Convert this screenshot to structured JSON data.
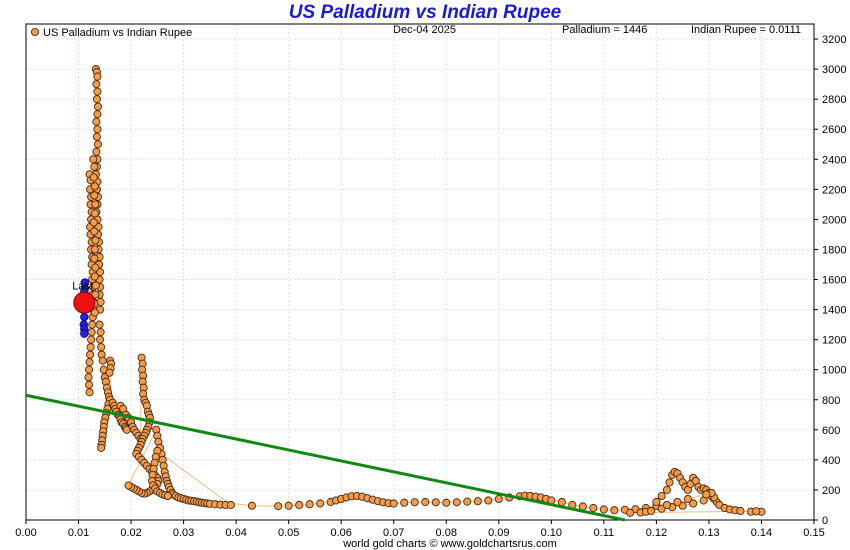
{
  "chart_data": {
    "type": "scatter",
    "title": "US Palladium vs Indian Rupee",
    "legend": {
      "label": "US Palladium vs Indian Rupee",
      "position": "top-left"
    },
    "date_label": "Dec-04  2025",
    "palladium_label": "Palladium = 1446",
    "rupee_label": "Indian Rupee = 0.0111",
    "last_label": "Last",
    "footer": "world gold charts © www.goldchartsrus.com",
    "xlim": [
      0,
      0.15
    ],
    "ylim": [
      0,
      3300
    ],
    "x_ticks": [
      "0.00",
      "0.01",
      "0.02",
      "0.03",
      "0.04",
      "0.05",
      "0.06",
      "0.07",
      "0.08",
      "0.09",
      "0.10",
      "0.11",
      "0.12",
      "0.13",
      "0.14",
      "0.15"
    ],
    "y_ticks": [
      "0",
      "200",
      "400",
      "600",
      "800",
      "1000",
      "1200",
      "1400",
      "1600",
      "1800",
      "2000",
      "2200",
      "2400",
      "2600",
      "2800",
      "3000",
      "3200"
    ],
    "grid": true,
    "colors": {
      "points": "#f39c4a",
      "recent": "#2222dd",
      "last": "#ee1111",
      "trend": "#118811",
      "title": "#1a1adc"
    },
    "trend_line": [
      [
        0,
        830
      ],
      [
        0.114,
        0
      ]
    ],
    "last_point": [
      0.0111,
      1446
    ],
    "recent_points": [
      [
        0.0112,
        1540
      ],
      [
        0.0112,
        1580
      ],
      [
        0.0111,
        1520
      ],
      [
        0.011,
        1480
      ],
      [
        0.0111,
        1350
      ],
      [
        0.011,
        1300
      ],
      [
        0.0111,
        1270
      ],
      [
        0.0111,
        1240
      ],
      [
        0.0112,
        1400
      ],
      [
        0.0111,
        1460
      ]
    ],
    "series_points": [
      [
        0.0133,
        3000
      ],
      [
        0.0135,
        2980
      ],
      [
        0.0136,
        2950
      ],
      [
        0.0134,
        2900
      ],
      [
        0.0136,
        2850
      ],
      [
        0.0135,
        2800
      ],
      [
        0.0137,
        2750
      ],
      [
        0.0136,
        2700
      ],
      [
        0.0134,
        2650
      ],
      [
        0.0136,
        2600
      ],
      [
        0.0135,
        2550
      ],
      [
        0.0137,
        2500
      ],
      [
        0.0134,
        2450
      ],
      [
        0.0136,
        2400
      ],
      [
        0.0135,
        2350
      ],
      [
        0.0133,
        2300
      ],
      [
        0.0136,
        2250
      ],
      [
        0.0135,
        2200
      ],
      [
        0.0137,
        2150
      ],
      [
        0.0136,
        2100
      ],
      [
        0.0134,
        2050
      ],
      [
        0.0136,
        2000
      ],
      [
        0.0138,
        1950
      ],
      [
        0.0137,
        1900
      ],
      [
        0.0139,
        1850
      ],
      [
        0.0138,
        1800
      ],
      [
        0.014,
        1750
      ],
      [
        0.0139,
        1700
      ],
      [
        0.0141,
        1650
      ],
      [
        0.014,
        1600
      ],
      [
        0.0141,
        1550
      ],
      [
        0.014,
        1500
      ],
      [
        0.0142,
        1450
      ],
      [
        0.0141,
        1400
      ],
      [
        0.0121,
        2300
      ],
      [
        0.0123,
        2260
      ],
      [
        0.0122,
        2200
      ],
      [
        0.0124,
        2150
      ],
      [
        0.0123,
        2100
      ],
      [
        0.0125,
        2050
      ],
      [
        0.0124,
        2000
      ],
      [
        0.0122,
        1950
      ],
      [
        0.0123,
        1900
      ],
      [
        0.0125,
        1850
      ],
      [
        0.0124,
        1800
      ],
      [
        0.0126,
        1750
      ],
      [
        0.0125,
        1700
      ],
      [
        0.0127,
        1650
      ],
      [
        0.0126,
        1600
      ],
      [
        0.0128,
        1550
      ],
      [
        0.0127,
        1500
      ],
      [
        0.0129,
        1450
      ],
      [
        0.0128,
        1400
      ],
      [
        0.0127,
        1350
      ],
      [
        0.0126,
        1300
      ],
      [
        0.0125,
        1250
      ],
      [
        0.0124,
        1200
      ],
      [
        0.0123,
        1150
      ],
      [
        0.0122,
        1100
      ],
      [
        0.0121,
        1050
      ],
      [
        0.012,
        1000
      ],
      [
        0.0119,
        950
      ],
      [
        0.012,
        900
      ],
      [
        0.0121,
        850
      ],
      [
        0.0128,
        2400
      ],
      [
        0.013,
        2350
      ],
      [
        0.0129,
        2280
      ],
      [
        0.0131,
        2220
      ],
      [
        0.013,
        2160
      ],
      [
        0.0132,
        2100
      ],
      [
        0.0131,
        2040
      ],
      [
        0.0129,
        1980
      ],
      [
        0.013,
        1920
      ],
      [
        0.0132,
        1860
      ],
      [
        0.0131,
        1800
      ],
      [
        0.013,
        1740
      ],
      [
        0.0132,
        1680
      ],
      [
        0.0131,
        1620
      ],
      [
        0.0133,
        1560
      ],
      [
        0.0132,
        1500
      ],
      [
        0.013,
        1440
      ],
      [
        0.0131,
        1380
      ],
      [
        0.014,
        1300
      ],
      [
        0.0142,
        1250
      ],
      [
        0.0141,
        1200
      ],
      [
        0.0143,
        1150
      ],
      [
        0.0144,
        1100
      ],
      [
        0.0146,
        1060
      ],
      [
        0.0148,
        1000
      ],
      [
        0.015,
        950
      ],
      [
        0.0152,
        920
      ],
      [
        0.0154,
        880
      ],
      [
        0.0156,
        850
      ],
      [
        0.0158,
        820
      ],
      [
        0.016,
        800
      ],
      [
        0.0157,
        770
      ],
      [
        0.0155,
        740
      ],
      [
        0.0153,
        710
      ],
      [
        0.0151,
        680
      ],
      [
        0.0149,
        650
      ],
      [
        0.0148,
        620
      ],
      [
        0.0147,
        590
      ],
      [
        0.0146,
        560
      ],
      [
        0.0145,
        530
      ],
      [
        0.0144,
        500
      ],
      [
        0.0143,
        480
      ],
      [
        0.016,
        1060
      ],
      [
        0.0162,
        1040
      ],
      [
        0.0161,
        1010
      ],
      [
        0.0159,
        980
      ],
      [
        0.0165,
        780
      ],
      [
        0.0168,
        760
      ],
      [
        0.017,
        740
      ],
      [
        0.0172,
        720
      ],
      [
        0.0175,
        700
      ],
      [
        0.0178,
        690
      ],
      [
        0.018,
        670
      ],
      [
        0.0182,
        650
      ],
      [
        0.0185,
        640
      ],
      [
        0.0188,
        620
      ],
      [
        0.019,
        610
      ],
      [
        0.0192,
        600
      ],
      [
        0.018,
        760
      ],
      [
        0.0185,
        740
      ],
      [
        0.019,
        700
      ],
      [
        0.0195,
        680
      ],
      [
        0.02,
        650
      ],
      [
        0.0203,
        620
      ],
      [
        0.0206,
        600
      ],
      [
        0.021,
        580
      ],
      [
        0.0214,
        560
      ],
      [
        0.0218,
        540
      ],
      [
        0.022,
        1080
      ],
      [
        0.0222,
        1040
      ],
      [
        0.0221,
        1000
      ],
      [
        0.0223,
        960
      ],
      [
        0.0222,
        920
      ],
      [
        0.0224,
        880
      ],
      [
        0.0223,
        840
      ],
      [
        0.0225,
        800
      ],
      [
        0.0228,
        780
      ],
      [
        0.023,
        760
      ],
      [
        0.0232,
        720
      ],
      [
        0.0234,
        700
      ],
      [
        0.0236,
        680
      ],
      [
        0.0235,
        650
      ],
      [
        0.0233,
        620
      ],
      [
        0.023,
        600
      ],
      [
        0.0228,
        580
      ],
      [
        0.0225,
        560
      ],
      [
        0.0222,
        540
      ],
      [
        0.022,
        520
      ],
      [
        0.0218,
        500
      ],
      [
        0.0215,
        480
      ],
      [
        0.0212,
        460
      ],
      [
        0.021,
        440
      ],
      [
        0.0215,
        420
      ],
      [
        0.022,
        400
      ],
      [
        0.0225,
        380
      ],
      [
        0.023,
        360
      ],
      [
        0.0235,
        340
      ],
      [
        0.024,
        320
      ],
      [
        0.0245,
        300
      ],
      [
        0.025,
        280
      ],
      [
        0.0252,
        260
      ],
      [
        0.025,
        240
      ],
      [
        0.0245,
        220
      ],
      [
        0.024,
        200
      ],
      [
        0.0235,
        190
      ],
      [
        0.023,
        180
      ],
      [
        0.0225,
        175
      ],
      [
        0.022,
        180
      ],
      [
        0.0215,
        190
      ],
      [
        0.021,
        200
      ],
      [
        0.0205,
        210
      ],
      [
        0.02,
        220
      ],
      [
        0.0195,
        230
      ],
      [
        0.0248,
        600
      ],
      [
        0.025,
        560
      ],
      [
        0.0252,
        520
      ],
      [
        0.0255,
        480
      ],
      [
        0.0258,
        440
      ],
      [
        0.026,
        400
      ],
      [
        0.0262,
        360
      ],
      [
        0.0264,
        320
      ],
      [
        0.0266,
        290
      ],
      [
        0.0268,
        260
      ],
      [
        0.027,
        240
      ],
      [
        0.0272,
        220
      ],
      [
        0.0275,
        200
      ],
      [
        0.0278,
        180
      ],
      [
        0.028,
        170
      ],
      [
        0.0285,
        160
      ],
      [
        0.029,
        150
      ],
      [
        0.0295,
        145
      ],
      [
        0.03,
        140
      ],
      [
        0.0305,
        135
      ],
      [
        0.031,
        130
      ],
      [
        0.0315,
        128
      ],
      [
        0.032,
        125
      ],
      [
        0.0325,
        122
      ],
      [
        0.033,
        118
      ],
      [
        0.0335,
        115
      ],
      [
        0.034,
        112
      ],
      [
        0.0345,
        110
      ],
      [
        0.035,
        108
      ],
      [
        0.036,
        105
      ],
      [
        0.037,
        102
      ],
      [
        0.038,
        100
      ],
      [
        0.039,
        100
      ],
      [
        0.025,
        460
      ],
      [
        0.0247,
        420
      ],
      [
        0.0245,
        380
      ],
      [
        0.0243,
        340
      ],
      [
        0.0241,
        300
      ],
      [
        0.024,
        260
      ],
      [
        0.0242,
        230
      ],
      [
        0.0246,
        210
      ],
      [
        0.025,
        190
      ],
      [
        0.0255,
        180
      ],
      [
        0.026,
        170
      ],
      [
        0.0265,
        165
      ],
      [
        0.027,
        160
      ],
      [
        0.043,
        95
      ],
      [
        0.048,
        92
      ],
      [
        0.05,
        95
      ],
      [
        0.052,
        100
      ],
      [
        0.054,
        105
      ],
      [
        0.056,
        110
      ],
      [
        0.058,
        120
      ],
      [
        0.059,
        130
      ],
      [
        0.06,
        140
      ],
      [
        0.061,
        150
      ],
      [
        0.062,
        158
      ],
      [
        0.063,
        160
      ],
      [
        0.064,
        155
      ],
      [
        0.065,
        145
      ],
      [
        0.066,
        135
      ],
      [
        0.067,
        125
      ],
      [
        0.068,
        118
      ],
      [
        0.069,
        112
      ],
      [
        0.07,
        110
      ],
      [
        0.072,
        115
      ],
      [
        0.074,
        118
      ],
      [
        0.076,
        120
      ],
      [
        0.078,
        118
      ],
      [
        0.08,
        115
      ],
      [
        0.082,
        118
      ],
      [
        0.084,
        122
      ],
      [
        0.086,
        125
      ],
      [
        0.088,
        130
      ],
      [
        0.09,
        140
      ],
      [
        0.092,
        150
      ],
      [
        0.094,
        158
      ],
      [
        0.095,
        162
      ],
      [
        0.096,
        160
      ],
      [
        0.097,
        155
      ],
      [
        0.098,
        150
      ],
      [
        0.099,
        140
      ],
      [
        0.1,
        130
      ],
      [
        0.102,
        120
      ],
      [
        0.104,
        100
      ],
      [
        0.106,
        90
      ],
      [
        0.108,
        80
      ],
      [
        0.11,
        70
      ],
      [
        0.112,
        65
      ],
      [
        0.114,
        68
      ],
      [
        0.116,
        72
      ],
      [
        0.118,
        80
      ],
      [
        0.12,
        95
      ],
      [
        0.12,
        120
      ],
      [
        0.121,
        160
      ],
      [
        0.122,
        200
      ],
      [
        0.1225,
        250
      ],
      [
        0.123,
        300
      ],
      [
        0.1235,
        320
      ],
      [
        0.124,
        310
      ],
      [
        0.1245,
        280
      ],
      [
        0.125,
        250
      ],
      [
        0.1255,
        220
      ],
      [
        0.126,
        200
      ],
      [
        0.1265,
        240
      ],
      [
        0.127,
        280
      ],
      [
        0.1275,
        260
      ],
      [
        0.128,
        220
      ],
      [
        0.1285,
        200
      ],
      [
        0.129,
        210
      ],
      [
        0.1295,
        200
      ],
      [
        0.13,
        180
      ],
      [
        0.1305,
        160
      ],
      [
        0.131,
        140
      ],
      [
        0.1315,
        120
      ],
      [
        0.132,
        100
      ],
      [
        0.133,
        80
      ],
      [
        0.134,
        70
      ],
      [
        0.135,
        65
      ],
      [
        0.136,
        60
      ],
      [
        0.138,
        55
      ],
      [
        0.14,
        55
      ],
      [
        0.139,
        58
      ],
      [
        0.117,
        50
      ],
      [
        0.115,
        48
      ],
      [
        0.118,
        55
      ],
      [
        0.119,
        60
      ],
      [
        0.121,
        75
      ],
      [
        0.123,
        85
      ],
      [
        0.125,
        95
      ],
      [
        0.127,
        110
      ],
      [
        0.129,
        130
      ],
      [
        0.131,
        150
      ],
      [
        0.1305,
        180
      ],
      [
        0.1295,
        170
      ],
      [
        0.126,
        140
      ],
      [
        0.124,
        120
      ],
      [
        0.122,
        100
      ]
    ]
  }
}
